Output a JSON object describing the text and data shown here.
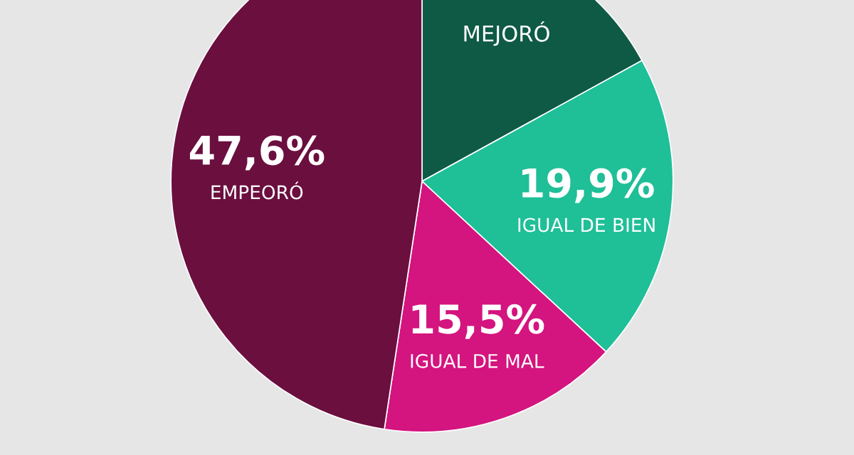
{
  "chart_data": {
    "type": "pie",
    "categories": [
      "MEJORÓ",
      "IGUAL DE BIEN",
      "IGUAL DE MAL",
      "EMPEORÓ"
    ],
    "values": [
      17.0,
      19.9,
      15.5,
      47.6
    ],
    "value_labels": [
      null,
      "19,9%",
      "15,5%",
      "47,6%"
    ],
    "colors": [
      "#0f5a45",
      "#1fbf98",
      "#d4147f",
      "#6b0f3f"
    ]
  }
}
